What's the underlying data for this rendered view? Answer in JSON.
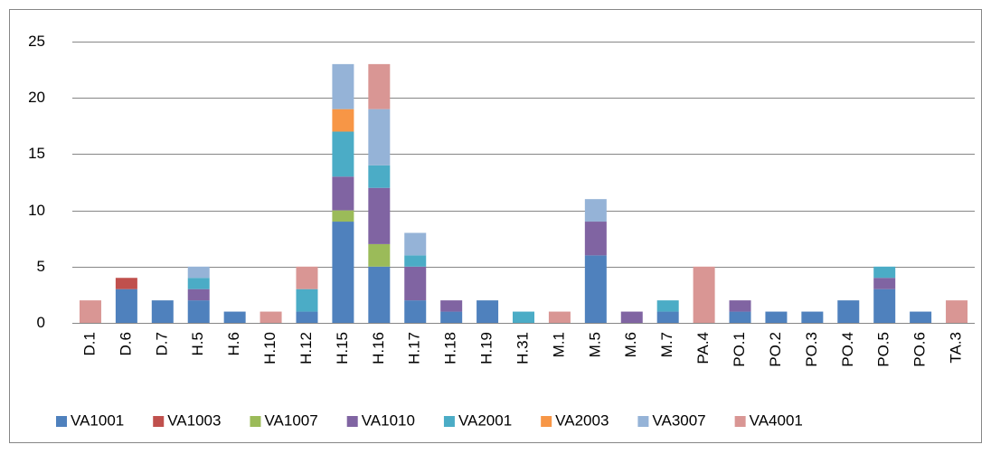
{
  "chart_data": {
    "type": "stacked_bar",
    "categories": [
      "D.1",
      "D.6",
      "D.7",
      "H.5",
      "H.6",
      "H.10",
      "H.12",
      "H.15",
      "H.16",
      "H.17",
      "H.18",
      "H.19",
      "H.31",
      "M.1",
      "M.5",
      "M.6",
      "M.7",
      "PA.4",
      "PO.1",
      "PO.2",
      "PO.3",
      "PO.4",
      "PO.5",
      "PO.6",
      "TA.3"
    ],
    "series": [
      {
        "name": "VA1001",
        "color": "#4f81bd",
        "values": [
          0,
          3,
          2,
          2,
          1,
          0,
          1,
          9,
          5,
          2,
          1,
          2,
          0,
          0,
          6,
          0,
          1,
          0,
          1,
          1,
          1,
          2,
          3,
          1,
          0
        ]
      },
      {
        "name": "VA1003",
        "color": "#c0504d",
        "values": [
          0,
          1,
          0,
          0,
          0,
          0,
          0,
          0,
          0,
          0,
          0,
          0,
          0,
          0,
          0,
          0,
          0,
          0,
          0,
          0,
          0,
          0,
          0,
          0,
          0
        ]
      },
      {
        "name": "VA1007",
        "color": "#9bbb59",
        "values": [
          0,
          0,
          0,
          0,
          0,
          0,
          0,
          1,
          2,
          0,
          0,
          0,
          0,
          0,
          0,
          0,
          0,
          0,
          0,
          0,
          0,
          0,
          0,
          0,
          0
        ]
      },
      {
        "name": "VA1010",
        "color": "#8064a2",
        "values": [
          0,
          0,
          0,
          1,
          0,
          0,
          0,
          3,
          5,
          3,
          1,
          0,
          0,
          0,
          3,
          1,
          0,
          0,
          1,
          0,
          0,
          0,
          1,
          0,
          0
        ]
      },
      {
        "name": "VA2001",
        "color": "#4bacc6",
        "values": [
          0,
          0,
          0,
          1,
          0,
          0,
          2,
          4,
          2,
          1,
          0,
          0,
          1,
          0,
          0,
          0,
          1,
          0,
          0,
          0,
          0,
          0,
          1,
          0,
          0
        ]
      },
      {
        "name": "VA2003",
        "color": "#f79646",
        "values": [
          0,
          0,
          0,
          0,
          0,
          0,
          0,
          2,
          0,
          0,
          0,
          0,
          0,
          0,
          0,
          0,
          0,
          0,
          0,
          0,
          0,
          0,
          0,
          0,
          0
        ]
      },
      {
        "name": "VA3007",
        "color": "#95b3d7",
        "values": [
          0,
          0,
          0,
          1,
          0,
          0,
          0,
          4,
          5,
          2,
          0,
          0,
          0,
          0,
          2,
          0,
          0,
          0,
          0,
          0,
          0,
          0,
          0,
          0,
          0
        ]
      },
      {
        "name": "VA4001",
        "color": "#d99694",
        "values": [
          2,
          0,
          0,
          0,
          0,
          1,
          2,
          0,
          4,
          0,
          0,
          0,
          0,
          1,
          0,
          0,
          0,
          5,
          0,
          0,
          0,
          0,
          0,
          0,
          2
        ]
      }
    ],
    "ylim": [
      0,
      25
    ],
    "yticks": [
      0,
      5,
      10,
      15,
      20,
      25
    ],
    "grid": true,
    "legend": "bottom"
  }
}
